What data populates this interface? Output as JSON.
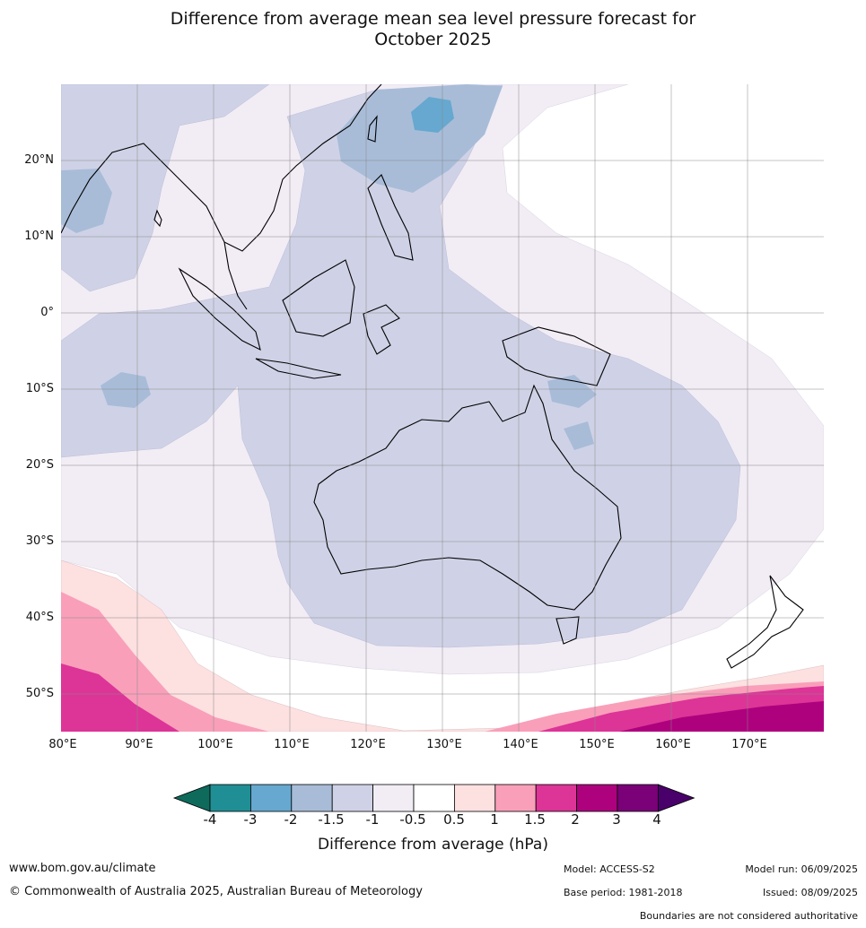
{
  "title_line1": "Difference from average mean sea level pressure forecast for",
  "title_line2": "October 2025",
  "map": {
    "lat_labels": [
      "20°N",
      "10°N",
      "0°",
      "10°S",
      "20°S",
      "30°S",
      "40°S",
      "50°S"
    ],
    "lon_labels": [
      "80°E",
      "90°E",
      "100°E",
      "110°E",
      "120°E",
      "130°E",
      "140°E",
      "150°E",
      "160°E",
      "170°E"
    ],
    "extent": {
      "lon_min": 80,
      "lon_max": 180,
      "lat_min": -55,
      "lat_max": 30
    }
  },
  "colorbar": {
    "title": "Difference from average (hPa)",
    "tick_labels": [
      "-4",
      "-3",
      "-2",
      "-1.5",
      "-1",
      "-0.5",
      "0.5",
      "1",
      "1.5",
      "2",
      "3",
      "4"
    ],
    "colors": [
      "#0e6b5c",
      "#1f8f95",
      "#66a8cf",
      "#a8bcd8",
      "#cfd2e6",
      "#f2ecf5",
      "#ffffff",
      "#fde0e0",
      "#f99fba",
      "#dd3497",
      "#ae017e",
      "#7a0177",
      "#49006a"
    ]
  },
  "footer": {
    "url": "www.bom.gov.au/climate",
    "copyright": "© Commonwealth of Australia 2025, Australian Bureau of Meteorology",
    "model": "Model: ACCESS-S2",
    "base_period": "Base period: 1981-2018",
    "model_run": "Model run: 06/09/2025",
    "issued": "Issued: 08/09/2025",
    "disclaimer": "Boundaries are not considered authoritative"
  }
}
